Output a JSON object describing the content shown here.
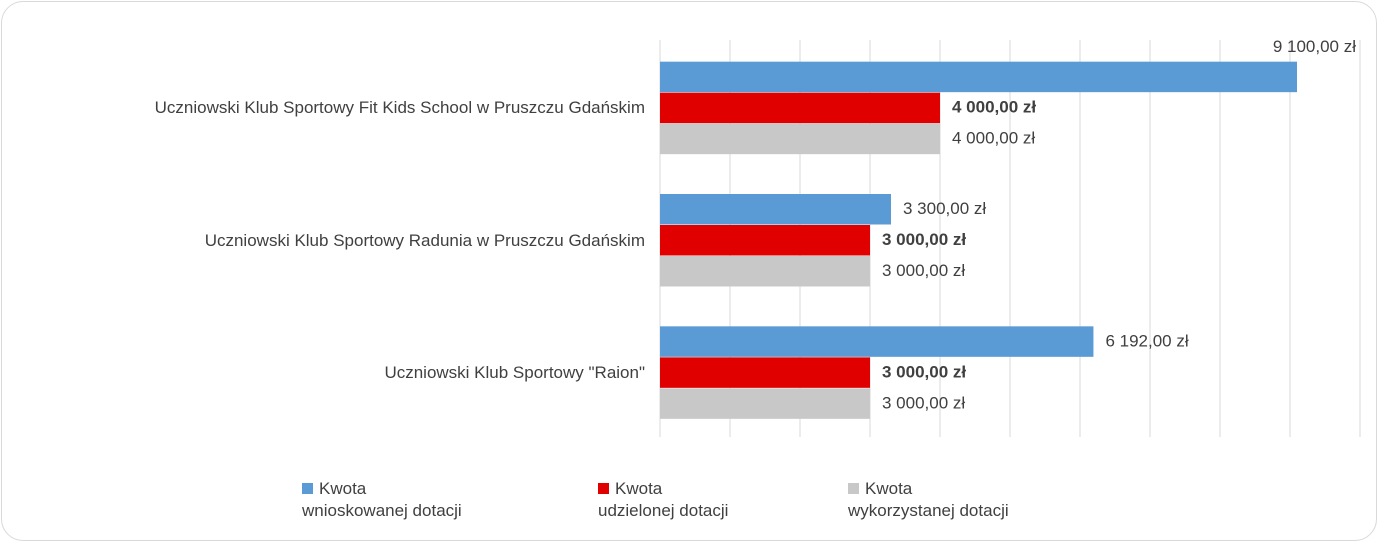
{
  "chart_data": {
    "type": "barh",
    "categories": [
      "Uczniowski Klub Sportowy Fit Kids School w Pruszczu Gdańskim",
      "Uczniowski Klub Sportowy Radunia w Pruszczu Gdańskim",
      "Uczniowski Klub Sportowy \"Raion\""
    ],
    "series": [
      {
        "name": "Kwota\nwnioskowanej dotacji",
        "color": "#5b9bd5",
        "values": [
          9100,
          3300,
          6192
        ],
        "value_labels": [
          "9 100,00 zł",
          "3 300,00 zł",
          "6 192,00 zł"
        ]
      },
      {
        "name": "Kwota\nudzielonej dotacji",
        "color": "#e00000",
        "values": [
          4000,
          3000,
          3000
        ],
        "value_labels": [
          "4 000,00 zł",
          "3 000,00 zł",
          "3 000,00 zł"
        ],
        "bold_labels": true
      },
      {
        "name": "Kwota\nwykorzystanej dotacji",
        "color": "#c8c8c8",
        "values": [
          4000,
          3000,
          3000
        ],
        "value_labels": [
          "4 000,00 zł",
          "3 000,00 zł",
          "3 000,00 zł"
        ]
      }
    ],
    "xlim": [
      0,
      10000
    ],
    "xticks": [
      0,
      1000,
      2000,
      3000,
      4000,
      5000,
      6000,
      7000,
      8000,
      9000,
      10000
    ],
    "grid": true
  }
}
